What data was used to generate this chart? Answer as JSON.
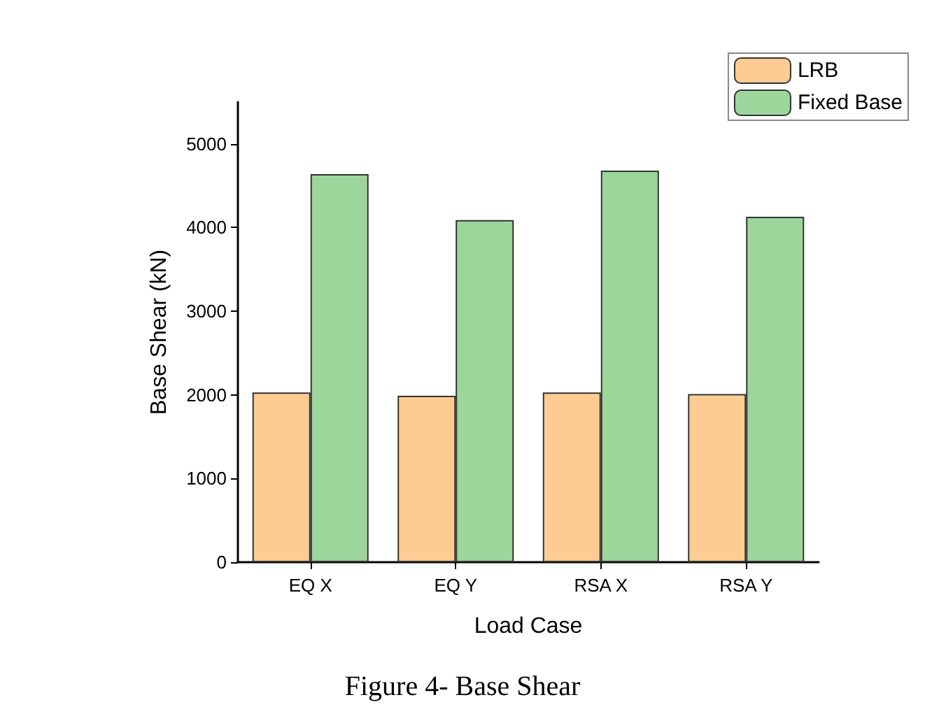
{
  "chart_data": {
    "type": "bar",
    "title": "Figure 4- Base Shear",
    "xlabel": "Load Case",
    "ylabel": "Base Shear (kN)",
    "categories": [
      "EQ X",
      "EQ Y",
      "RSA X",
      "RSA Y"
    ],
    "series": [
      {
        "name": "LRB",
        "color": "#fdcc92",
        "values": [
          2030,
          1990,
          2030,
          2010
        ]
      },
      {
        "name": "Fixed Base",
        "color": "#9dd69b",
        "values": [
          4640,
          4090,
          4680,
          4130
        ]
      }
    ],
    "ylim": [
      0,
      5500
    ],
    "yticks": [
      0,
      1000,
      2000,
      3000,
      4000,
      5000
    ],
    "grid": false,
    "legend": "top right"
  }
}
